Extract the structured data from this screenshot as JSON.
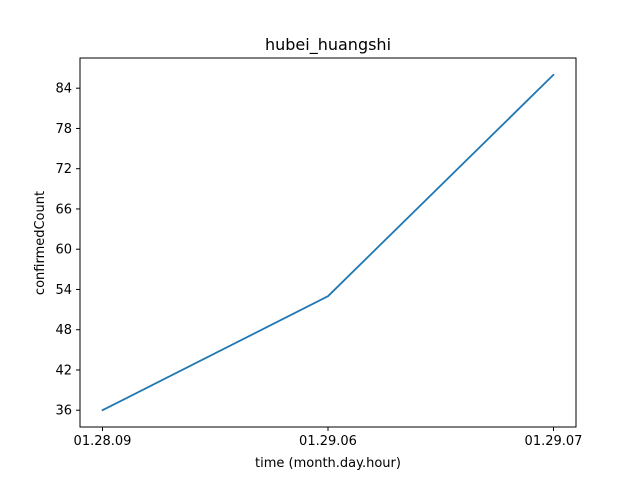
{
  "chart_data": {
    "type": "line",
    "title": "hubei_huangshi",
    "xlabel": "time (month.day.hour)",
    "ylabel": "confirmedCount",
    "categories": [
      "01.28.09",
      "01.29.06",
      "01.29.07"
    ],
    "series": [
      {
        "values": [
          36,
          53,
          86
        ],
        "color": "#1f77b4"
      }
    ],
    "yticks": [
      36,
      42,
      48,
      54,
      60,
      66,
      72,
      78,
      84
    ],
    "ylim": [
      33.5,
      88.5
    ],
    "grid": false,
    "legend": "none"
  }
}
